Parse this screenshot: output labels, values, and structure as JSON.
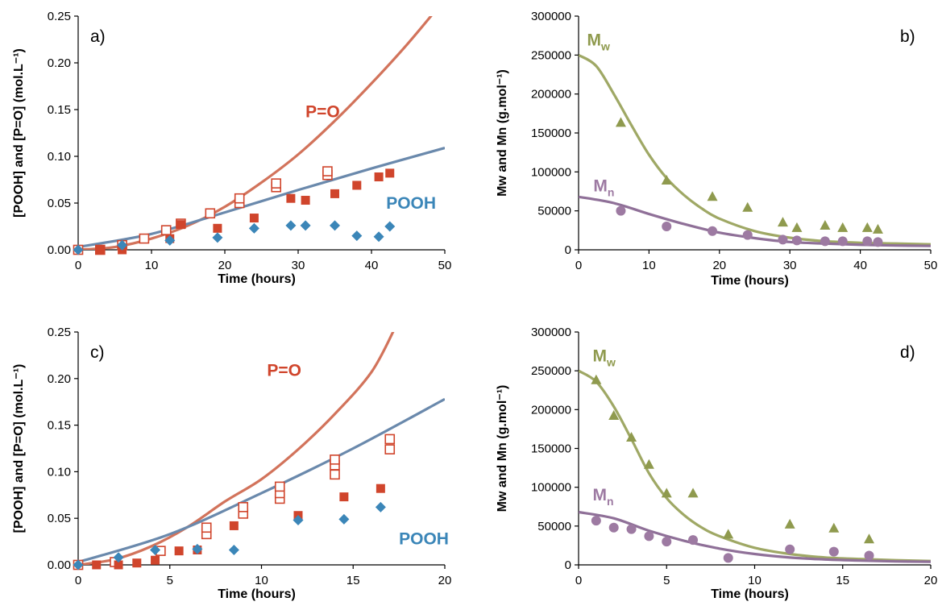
{
  "colors": {
    "po": "#d0452c",
    "po_curve": "#d2735b",
    "pooh": "#3b86b8",
    "pooh_curve": "#6a89ac",
    "mw": "#8f9a4e",
    "mw_curve": "#9fa865",
    "mn": "#9d7aa2",
    "mn_curve": "#8f7098"
  },
  "chart_data": [
    {
      "panel": "a)",
      "type": "scatter",
      "xlabel": "Time (hours)",
      "ylabel": "[POOH] and [P=O] (mol.L⁻¹)",
      "xlim": [
        0,
        50
      ],
      "ylim": [
        0,
        0.25
      ],
      "xticks": [
        0,
        10,
        20,
        30,
        40,
        50
      ],
      "yticks": [
        "0.00",
        "0.05",
        "0.10",
        "0.15",
        "0.20",
        "0.25"
      ],
      "annotations": [
        {
          "text": "P=O",
          "series": "po",
          "x": 31,
          "y": 0.142
        },
        {
          "text": "POOH",
          "series": "pooh",
          "x": 42,
          "y": 0.044
        }
      ],
      "series": [
        {
          "key": "po_open",
          "marker": "square-open",
          "color": "po",
          "x": [
            0,
            3,
            6,
            9,
            12,
            14,
            18,
            22,
            22,
            27,
            27,
            34,
            34
          ],
          "y": [
            0,
            0,
            0.005,
            0.012,
            0.021,
            0.028,
            0.039,
            0.05,
            0.055,
            0.067,
            0.071,
            0.08,
            0.084
          ]
        },
        {
          "key": "po_filled",
          "marker": "square-filled",
          "color": "po",
          "x": [
            3,
            6,
            12.5,
            14,
            19,
            24,
            29,
            31,
            35,
            38,
            41,
            42.5
          ],
          "y": [
            0,
            0,
            0.012,
            0.027,
            0.023,
            0.034,
            0.055,
            0.053,
            0.06,
            0.069,
            0.078,
            0.082
          ]
        },
        {
          "key": "pooh",
          "marker": "diamond",
          "color": "pooh",
          "x": [
            0,
            6,
            12.5,
            19,
            24,
            29,
            31,
            35,
            38,
            41,
            42.5
          ],
          "y": [
            0,
            0.005,
            0.01,
            0.013,
            0.023,
            0.026,
            0.026,
            0.026,
            0.015,
            0.014,
            0.025
          ]
        },
        {
          "key": "po_curve",
          "marker": "line",
          "color": "po_curve",
          "x": [
            0,
            5,
            10,
            15,
            20,
            25,
            30,
            35,
            40,
            45,
            50
          ],
          "y": [
            0,
            0.003,
            0.012,
            0.026,
            0.046,
            0.072,
            0.102,
            0.138,
            0.178,
            0.221,
            0.268
          ]
        },
        {
          "key": "pooh_curve",
          "marker": "line",
          "color": "pooh_curve",
          "x": [
            0,
            10,
            20,
            30,
            40,
            50
          ],
          "y": [
            0.003,
            0.017,
            0.04,
            0.064,
            0.087,
            0.109
          ]
        }
      ]
    },
    {
      "panel": "b)",
      "type": "scatter",
      "xlabel": "Time (hours)",
      "ylabel": "Mw and Mn (g.mol⁻¹)",
      "xlim": [
        0,
        50
      ],
      "ylim": [
        0,
        300000
      ],
      "xticks": [
        0,
        10,
        20,
        30,
        40,
        50
      ],
      "yticks": [
        "0",
        "50000",
        "100000",
        "150000",
        "200000",
        "250000",
        "300000"
      ],
      "annotations": [
        {
          "text": "M",
          "sub": "w",
          "series": "mw",
          "x": 1.2,
          "y": 262000
        },
        {
          "text": "M",
          "sub": "n",
          "series": "mn",
          "x": 2.1,
          "y": 75000
        }
      ],
      "series": [
        {
          "key": "mw",
          "marker": "triangle",
          "color": "mw",
          "x": [
            6,
            12.5,
            19,
            24,
            29,
            31,
            35,
            37.5,
            41,
            42.5
          ],
          "y": [
            163000,
            89000,
            68000,
            54000,
            35000,
            28000,
            31000,
            28000,
            28000,
            26000
          ]
        },
        {
          "key": "mn",
          "marker": "circle",
          "color": "mn",
          "x": [
            6,
            12.5,
            19,
            24,
            29,
            31,
            35,
            37.5,
            41,
            42.5
          ],
          "y": [
            50000,
            30000,
            24000,
            19000,
            13000,
            12000,
            11000,
            11000,
            11000,
            10000
          ]
        },
        {
          "key": "mw_curve",
          "marker": "line",
          "color": "mw_curve",
          "x": [
            0,
            2.5,
            5,
            7.5,
            10,
            12.5,
            15,
            17.5,
            20,
            25,
            30,
            35,
            40,
            45,
            50
          ],
          "y": [
            250000,
            236000,
            200000,
            160000,
            122000,
            92000,
            70000,
            53000,
            40000,
            24000,
            15500,
            11000,
            9000,
            8000,
            7000
          ]
        },
        {
          "key": "mn_curve",
          "marker": "line",
          "color": "mn_curve",
          "x": [
            0,
            5,
            10,
            15,
            20,
            25,
            30,
            35,
            40,
            45,
            50
          ],
          "y": [
            68000,
            60000,
            46000,
            33000,
            22000,
            15000,
            10000,
            8000,
            6500,
            5500,
            5000
          ]
        }
      ]
    },
    {
      "panel": "c)",
      "type": "scatter",
      "xlabel": "Time (hours)",
      "ylabel": "[POOH] and [P=O] (mol.L⁻¹)",
      "xlim": [
        0,
        20
      ],
      "ylim": [
        0,
        0.25
      ],
      "xticks": [
        0,
        5,
        10,
        15,
        20
      ],
      "yticks": [
        "0.00",
        "0.05",
        "0.10",
        "0.15",
        "0.20",
        "0.25"
      ],
      "annotations": [
        {
          "text": "P=O",
          "series": "po",
          "x": 10.3,
          "y": 0.203
        },
        {
          "text": "POOH",
          "series": "pooh",
          "x": 17.5,
          "y": 0.022
        }
      ],
      "series": [
        {
          "key": "po_open",
          "marker": "square-open",
          "color": "po",
          "x": [
            0,
            2,
            4.5,
            7,
            7,
            9,
            9,
            11,
            11,
            11,
            14,
            14,
            14,
            17,
            17
          ],
          "y": [
            0,
            0.003,
            0.015,
            0.033,
            0.04,
            0.055,
            0.062,
            0.071,
            0.077,
            0.084,
            0.097,
            0.107,
            0.113,
            0.124,
            0.135
          ]
        },
        {
          "key": "po_filled",
          "marker": "square-filled",
          "color": "po",
          "x": [
            1,
            2.2,
            3.2,
            4.2,
            5.5,
            6.5,
            8.5,
            12,
            14.5,
            16.5
          ],
          "y": [
            0,
            0,
            0.002,
            0.005,
            0.015,
            0.016,
            0.042,
            0.053,
            0.073,
            0.082
          ]
        },
        {
          "key": "pooh",
          "marker": "diamond",
          "color": "pooh",
          "x": [
            0,
            2.2,
            4.2,
            6.5,
            8.5,
            12,
            14.5,
            16.5
          ],
          "y": [
            0,
            0.008,
            0.016,
            0.017,
            0.016,
            0.048,
            0.049,
            0.062
          ]
        },
        {
          "key": "po_curve",
          "marker": "line",
          "color": "po_curve",
          "x": [
            0,
            2,
            4,
            6,
            8,
            10,
            12,
            14,
            16,
            17.3
          ],
          "y": [
            0,
            0.006,
            0.02,
            0.041,
            0.068,
            0.092,
            0.124,
            0.162,
            0.207,
            0.255
          ]
        },
        {
          "key": "pooh_curve",
          "marker": "line",
          "color": "pooh_curve",
          "x": [
            0,
            5,
            10,
            15,
            20
          ],
          "y": [
            0.003,
            0.033,
            0.077,
            0.125,
            0.178
          ]
        }
      ]
    },
    {
      "panel": "d)",
      "type": "scatter",
      "xlabel": "Time (hours)",
      "ylabel": "Mw and Mn (g.mol⁻¹)",
      "xlim": [
        0,
        20
      ],
      "ylim": [
        0,
        300000
      ],
      "xticks": [
        0,
        5,
        10,
        15,
        20
      ],
      "yticks": [
        "0",
        "50000",
        "100000",
        "150000",
        "200000",
        "250000",
        "300000"
      ],
      "annotations": [
        {
          "text": "M",
          "sub": "w",
          "series": "mw",
          "x": 0.8,
          "y": 262000
        },
        {
          "text": "M",
          "sub": "n",
          "series": "mn",
          "x": 0.8,
          "y": 83000
        }
      ],
      "series": [
        {
          "key": "mw",
          "marker": "triangle",
          "color": "mw",
          "x": [
            1,
            2,
            3,
            4,
            5,
            6.5,
            8.5,
            12,
            14.5,
            16.5
          ],
          "y": [
            238000,
            192000,
            164000,
            129000,
            92000,
            92000,
            39000,
            52000,
            47000,
            33000
          ]
        },
        {
          "key": "mn",
          "marker": "circle",
          "color": "mn",
          "x": [
            1,
            2,
            3,
            4,
            5,
            6.5,
            8.5,
            12,
            14.5,
            16.5
          ],
          "y": [
            57000,
            48000,
            46000,
            37000,
            30000,
            32000,
            9000,
            20000,
            17000,
            12000
          ]
        },
        {
          "key": "mw_curve",
          "marker": "line",
          "color": "mw_curve",
          "x": [
            0,
            1,
            2,
            3,
            4,
            5,
            6,
            7,
            8,
            10,
            12,
            14,
            16,
            18,
            20
          ],
          "y": [
            250000,
            236000,
            204000,
            162000,
            118000,
            86000,
            64000,
            48000,
            37000,
            22000,
            14000,
            9500,
            7500,
            6000,
            5000
          ]
        },
        {
          "key": "mn_curve",
          "marker": "line",
          "color": "mn_curve",
          "x": [
            0,
            2,
            4,
            6,
            8,
            10,
            12,
            14,
            16,
            18,
            20
          ],
          "y": [
            68000,
            60000,
            44000,
            31000,
            21000,
            14000,
            9500,
            7000,
            5500,
            4500,
            4000
          ]
        }
      ]
    }
  ]
}
